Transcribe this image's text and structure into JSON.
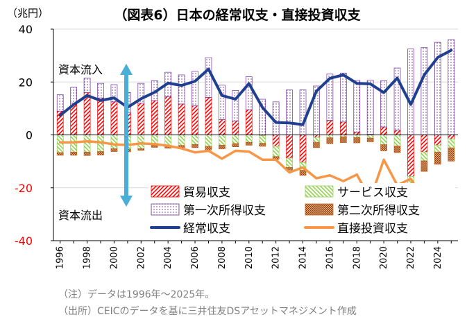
{
  "chart_data": {
    "type": "bar",
    "title": "（図表6）日本の経常収支・直接投資収支",
    "ylabel": "（兆円）",
    "ylim": [
      -40,
      40
    ],
    "yticks": [
      40,
      20,
      0,
      -20,
      -40
    ],
    "grid": true,
    "legend_position": "bottom-right inside plot",
    "years": [
      1996,
      1997,
      1998,
      1999,
      2000,
      2001,
      2002,
      2003,
      2004,
      2005,
      2006,
      2007,
      2008,
      2009,
      2010,
      2011,
      2012,
      2013,
      2014,
      2015,
      2016,
      2017,
      2018,
      2019,
      2020,
      2021,
      2022,
      2023,
      2024,
      2025
    ],
    "x_tick_labels": [
      "1996",
      "1998",
      "2000",
      "2002",
      "2004",
      "2006",
      "2008",
      "2010",
      "2012",
      "2014",
      "2016",
      "2018",
      "2020",
      "2022",
      "2024"
    ],
    "series": [
      {
        "name": "貿易収支",
        "kind": "stacked-bar",
        "color": "#ff0000",
        "values": [
          9.0,
          12.0,
          16.0,
          14.0,
          12.5,
          8.5,
          12.0,
          13.0,
          14.5,
          11.7,
          11.0,
          14.2,
          5.8,
          5.3,
          9.5,
          -0.3,
          -4.3,
          -8.8,
          -10.4,
          -0.9,
          5.5,
          4.9,
          1.1,
          0.2,
          3.0,
          1.8,
          -15.7,
          -6.5,
          -3.9,
          -1.5
        ]
      },
      {
        "name": "サービス収支",
        "kind": "stacked-bar",
        "color": "#92d050",
        "values": [
          -6.7,
          -6.5,
          -6.5,
          -6.3,
          -5.2,
          -5.4,
          -5.2,
          -3.9,
          -4.2,
          -4.0,
          -3.6,
          -4.3,
          -3.9,
          -3.3,
          -2.8,
          -2.9,
          -3.9,
          -3.5,
          -3.0,
          -1.9,
          -1.1,
          -0.7,
          -1.0,
          -1.2,
          -3.7,
          -4.2,
          -5.4,
          -3.3,
          -2.6,
          -3.4
        ]
      },
      {
        "name": "第一次所得収支",
        "kind": "stacked-bar",
        "color": "#7030a0",
        "values": [
          6.2,
          6.0,
          5.5,
          5.5,
          6.5,
          7.5,
          7.5,
          7.5,
          9.2,
          11.0,
          13.0,
          15.0,
          13.0,
          11.5,
          12.5,
          13.5,
          12.5,
          17.0,
          17.0,
          18.5,
          17.5,
          18.5,
          19.5,
          20.5,
          17.5,
          23.5,
          32.5,
          33.0,
          35.0,
          36.0
        ]
      },
      {
        "name": "第二次所得収支",
        "kind": "stacked-bar",
        "color": "#c55a11",
        "values": [
          -1.0,
          -1.2,
          -1.3,
          -1.3,
          -1.1,
          -1.0,
          -0.6,
          -0.8,
          -0.8,
          -0.8,
          -1.2,
          -1.4,
          -1.4,
          -1.2,
          -1.1,
          -1.1,
          -1.0,
          -1.0,
          -1.9,
          -2.0,
          -2.2,
          -2.2,
          -2.0,
          -1.4,
          -2.3,
          -2.5,
          -2.6,
          -4.0,
          -4.6,
          -5.0
        ]
      },
      {
        "name": "経常収支",
        "kind": "line",
        "color": "#1f3f8f",
        "values": [
          7.4,
          11.5,
          14.9,
          13.0,
          14.0,
          10.4,
          13.7,
          16.1,
          19.6,
          18.7,
          20.3,
          24.9,
          14.9,
          13.5,
          19.4,
          10.4,
          4.7,
          4.5,
          3.9,
          16.5,
          21.4,
          22.7,
          19.5,
          19.3,
          16.0,
          21.5,
          11.5,
          22.7,
          29.3,
          32.0
        ]
      },
      {
        "name": "直接投資収支",
        "kind": "line",
        "color": "#f79646",
        "values": [
          -2.8,
          -2.8,
          -2.4,
          -2.8,
          -3.6,
          -3.8,
          -3.2,
          -3.5,
          -4.1,
          -5.1,
          -6.6,
          -6.0,
          -9.0,
          -6.0,
          -6.3,
          -9.4,
          -9.4,
          -14.2,
          -12.3,
          -16.4,
          -15.3,
          -17.5,
          -15.0,
          -24.3,
          -9.4,
          -19.0,
          -16.6,
          -25.0,
          -28.0,
          -26.0
        ]
      }
    ],
    "annotations": [
      {
        "text": "資本流入",
        "direction": "up"
      },
      {
        "text": "資本流出",
        "direction": "down"
      }
    ],
    "arrow_color": "#4aaed6"
  },
  "notes": [
    "（注）データは1996年～2025年。",
    "（出所）CEICのデータを基に三井住友DSアセットマネジメント作成"
  ]
}
